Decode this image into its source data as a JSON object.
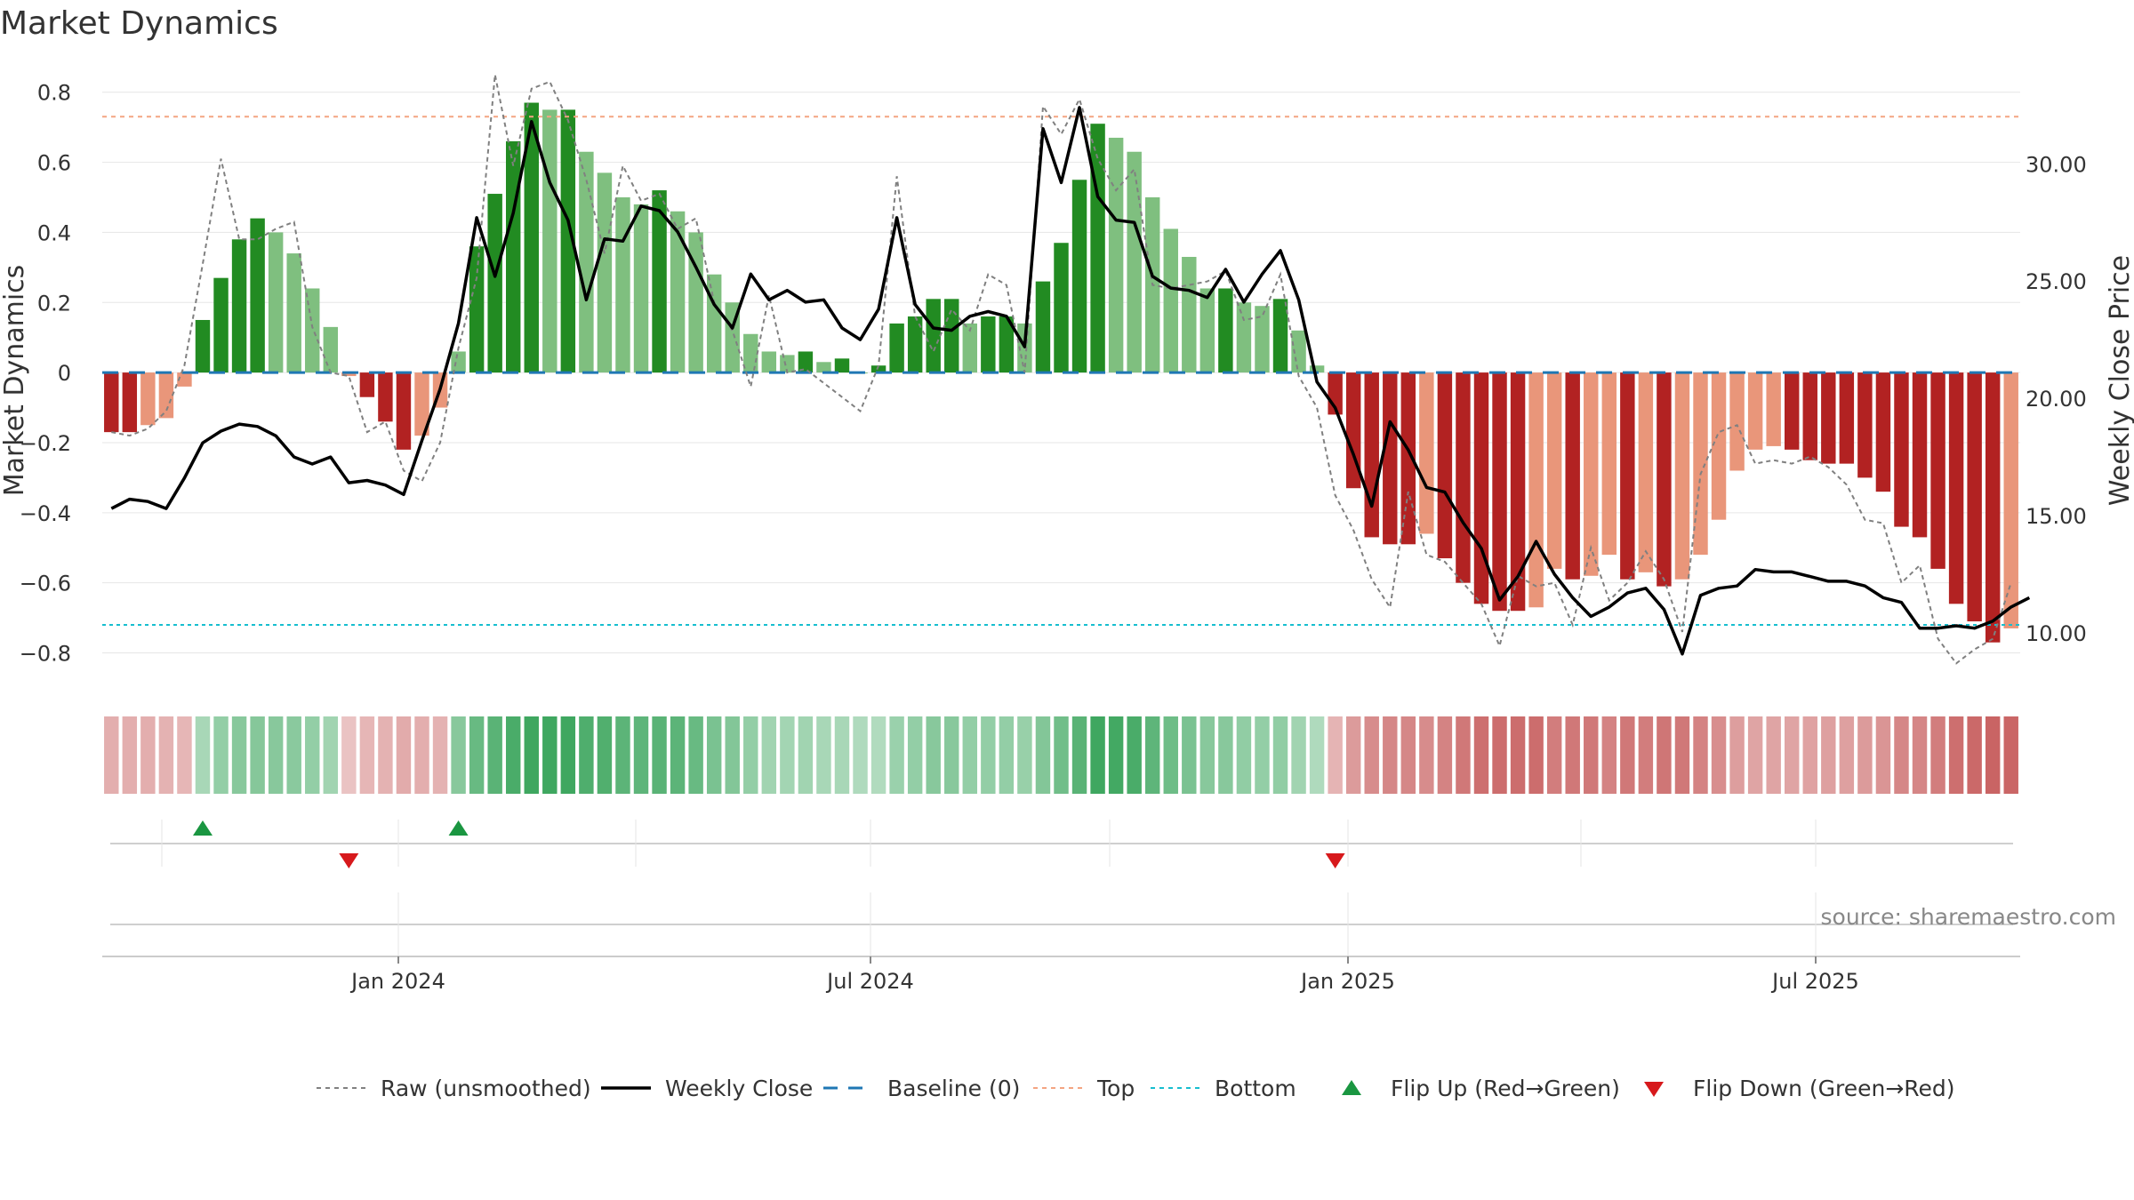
{
  "chart_data": {
    "type": "bar",
    "title": "Market Dynamics",
    "ylabel": "Market Dynamics",
    "y2label": "Weekly Close Price",
    "ylim": [
      -0.89,
      0.85
    ],
    "y2lim": [
      7.8,
      33.8
    ],
    "yticks": [
      0.8,
      0.6,
      0.4,
      0.2,
      0,
      -0.2,
      -0.4,
      -0.6,
      -0.8
    ],
    "yticklabels": [
      "0.8",
      "0.6",
      "0.4",
      "0.2",
      "0",
      "−0.2",
      "−0.4",
      "−0.6",
      "−0.8"
    ],
    "y2ticks": [
      30,
      25,
      20,
      15,
      10
    ],
    "y2ticklabels": [
      "30.00",
      "25.00",
      "20.00",
      "15.00",
      "10.00"
    ],
    "top_line": 0.73,
    "bottom_line": -0.72,
    "x_ticks": [
      "Jan 2024",
      "Jul 2024",
      "Jan 2025",
      "Jul 2025"
    ],
    "bars": [
      -0.17,
      -0.17,
      -0.15,
      -0.13,
      -0.04,
      0.15,
      0.27,
      0.38,
      0.44,
      0.4,
      0.34,
      0.24,
      0.13,
      -0.01,
      -0.07,
      -0.14,
      -0.22,
      -0.18,
      -0.1,
      0.06,
      0.36,
      0.51,
      0.66,
      0.77,
      0.75,
      0.75,
      0.63,
      0.57,
      0.5,
      0.48,
      0.52,
      0.46,
      0.4,
      0.28,
      0.2,
      0.11,
      0.06,
      0.05,
      0.06,
      0.03,
      0.04,
      0.0,
      0.02,
      0.14,
      0.16,
      0.21,
      0.21,
      0.14,
      0.16,
      0.16,
      0.14,
      0.26,
      0.37,
      0.55,
      0.71,
      0.67,
      0.63,
      0.5,
      0.41,
      0.33,
      0.24,
      0.24,
      0.2,
      0.19,
      0.21,
      0.12,
      0.02,
      -0.12,
      -0.33,
      -0.47,
      -0.49,
      -0.49,
      -0.46,
      -0.53,
      -0.6,
      -0.66,
      -0.68,
      -0.68,
      -0.67,
      -0.56,
      -0.59,
      -0.58,
      -0.52,
      -0.59,
      -0.57,
      -0.61,
      -0.59,
      -0.52,
      -0.42,
      -0.28,
      -0.22,
      -0.21,
      -0.22,
      -0.25,
      -0.26,
      -0.26,
      -0.3,
      -0.34,
      -0.44,
      -0.47,
      -0.56,
      -0.66,
      -0.71,
      -0.77,
      -0.73
    ],
    "weekly_close": [
      15.3,
      15.7,
      15.6,
      15.3,
      16.6,
      18.1,
      18.6,
      18.9,
      18.8,
      18.4,
      17.5,
      17.2,
      17.5,
      16.4,
      16.5,
      16.3,
      15.9,
      18.2,
      20.4,
      23.2,
      27.7,
      25.2,
      27.9,
      31.8,
      29.2,
      27.6,
      24.2,
      26.8,
      26.7,
      28.2,
      28.0,
      27.1,
      25.6,
      24.0,
      23.0,
      25.3,
      24.2,
      24.6,
      24.1,
      24.2,
      23.0,
      22.5,
      23.8,
      27.7,
      24.0,
      23.0,
      22.9,
      23.5,
      23.7,
      23.5,
      22.2,
      31.5,
      29.2,
      32.4,
      28.6,
      27.6,
      27.5,
      25.2,
      24.7,
      24.6,
      24.3,
      25.5,
      24.1,
      25.3,
      26.3,
      24.2,
      20.7,
      19.6,
      17.6,
      15.4,
      19.0,
      17.8,
      16.2,
      16.0,
      14.7,
      13.6,
      11.4,
      12.4,
      13.9,
      12.5,
      11.5,
      10.7,
      11.1,
      11.7,
      11.9,
      11.0,
      9.1,
      11.6,
      11.9,
      12.0,
      12.7,
      12.6,
      12.6,
      12.4,
      12.2,
      12.2,
      12.0,
      11.5,
      11.3,
      10.2,
      10.2,
      10.3,
      10.2,
      10.5,
      11.1,
      11.5
    ],
    "raw": [
      -0.17,
      -0.18,
      -0.16,
      -0.11,
      0.02,
      0.31,
      0.61,
      0.38,
      0.38,
      0.41,
      0.43,
      0.13,
      0.0,
      -0.01,
      -0.17,
      -0.14,
      -0.28,
      -0.31,
      -0.2,
      0.07,
      0.27,
      0.85,
      0.59,
      0.81,
      0.83,
      0.72,
      0.55,
      0.34,
      0.59,
      0.49,
      0.51,
      0.41,
      0.44,
      0.2,
      0.12,
      -0.04,
      0.22,
      0.0,
      0.01,
      -0.03,
      -0.07,
      -0.11,
      0.02,
      0.56,
      0.16,
      0.06,
      0.18,
      0.12,
      0.28,
      0.25,
      0.0,
      0.76,
      0.68,
      0.78,
      0.61,
      0.52,
      0.58,
      0.25,
      0.24,
      0.25,
      0.26,
      0.29,
      0.15,
      0.16,
      0.28,
      -0.01,
      -0.1,
      -0.35,
      -0.45,
      -0.59,
      -0.67,
      -0.34,
      -0.52,
      -0.54,
      -0.6,
      -0.66,
      -0.78,
      -0.58,
      -0.61,
      -0.6,
      -0.72,
      -0.5,
      -0.65,
      -0.6,
      -0.51,
      -0.59,
      -0.74,
      -0.29,
      -0.17,
      -0.15,
      -0.26,
      -0.25,
      -0.26,
      -0.24,
      -0.27,
      -0.32,
      -0.42,
      -0.43,
      -0.6,
      -0.55,
      -0.76,
      -0.83,
      -0.79,
      -0.76,
      -0.6
    ],
    "strip": [
      -0.24,
      -0.24,
      -0.24,
      -0.22,
      -0.18,
      0.25,
      0.38,
      0.45,
      0.47,
      0.46,
      0.44,
      0.38,
      0.3,
      -0.1,
      -0.18,
      -0.21,
      -0.26,
      -0.24,
      -0.22,
      0.45,
      0.65,
      0.75,
      0.85,
      0.92,
      0.92,
      0.92,
      0.82,
      0.8,
      0.73,
      0.72,
      0.75,
      0.73,
      0.65,
      0.55,
      0.48,
      0.38,
      0.3,
      0.28,
      0.3,
      0.25,
      0.25,
      0.22,
      0.2,
      0.34,
      0.38,
      0.45,
      0.45,
      0.38,
      0.38,
      0.38,
      0.36,
      0.48,
      0.6,
      0.75,
      0.92,
      0.88,
      0.85,
      0.72,
      0.62,
      0.55,
      0.46,
      0.46,
      0.4,
      0.38,
      0.4,
      0.3,
      0.22,
      -0.2,
      -0.36,
      -0.46,
      -0.48,
      -0.48,
      -0.46,
      -0.52,
      -0.58,
      -0.64,
      -0.66,
      -0.66,
      -0.65,
      -0.56,
      -0.58,
      -0.58,
      -0.52,
      -0.58,
      -0.56,
      -0.6,
      -0.58,
      -0.52,
      -0.44,
      -0.34,
      -0.3,
      -0.3,
      -0.3,
      -0.32,
      -0.33,
      -0.33,
      -0.36,
      -0.4,
      -0.48,
      -0.5,
      -0.56,
      -0.64,
      -0.68,
      -0.72,
      -0.7
    ],
    "flip_up_index": [
      5,
      19
    ],
    "flip_down_index": [
      13,
      67
    ],
    "legend": [
      {
        "label": "Raw (unsmoothed)",
        "color": "#808080",
        "marker": "dotted-line"
      },
      {
        "label": "Weekly Close",
        "color": "#000000",
        "marker": "solid-line"
      },
      {
        "label": "Baseline (0)",
        "color": "#1f77b4",
        "marker": "dashed-line"
      },
      {
        "label": "Top",
        "color": "#f4a582",
        "marker": "dotted-line"
      },
      {
        "label": "Bottom",
        "color": "#17becf",
        "marker": "dotted-line"
      },
      {
        "label": "Flip Up (Red→Green)",
        "color": "#1a9641",
        "marker": "triangle-up"
      },
      {
        "label": "Flip Down (Green→Red)",
        "color": "#d7191c",
        "marker": "triangle-down"
      }
    ],
    "legend_position": "bottom-center",
    "colors": {
      "green_strong": "#228B22",
      "green_weak": "#7FBF7F",
      "red_strong": "#B22222",
      "red_weak": "#E9967A",
      "raw": "#808080",
      "close": "#000000",
      "baseline": "#1f77b4",
      "top": "#f4a582",
      "bottom": "#17becf",
      "flip_up": "#1a9641",
      "flip_down": "#d7191c"
    }
  },
  "source_text": "source: sharemaestro.com"
}
